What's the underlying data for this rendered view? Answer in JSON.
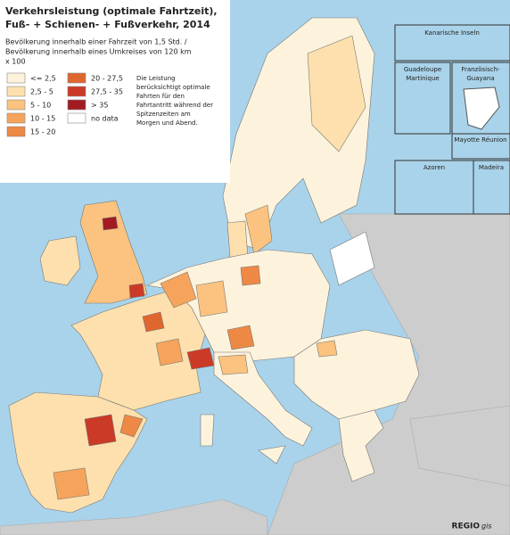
{
  "header": {
    "title_lines": [
      "Verkehrsleistung (optimale Fahrtzeit),",
      "Fuß- + Schienen- + Fußverkehr, 2014"
    ],
    "subtitle_lines": [
      "Bevölkerung innerhalb einer Fahrzeit von 1,5 Std. /",
      "Bevölkerung innerhalb eines Umkreises von 120 km",
      "x 100"
    ]
  },
  "legend": {
    "items": [
      {
        "label": "<= 2,5",
        "color": "#fdf3dc"
      },
      {
        "label": "2,5 - 5",
        "color": "#fde0ad"
      },
      {
        "label": "5 - 10",
        "color": "#fbc37f"
      },
      {
        "label": "10 - 15",
        "color": "#f6a45c"
      },
      {
        "label": "15 - 20",
        "color": "#ee8845"
      },
      {
        "label": "20 - 27,5",
        "color": "#e0662f"
      },
      {
        "label": "27,5 - 35",
        "color": "#cb3a26"
      },
      {
        "label": "> 35",
        "color": "#a31b22"
      },
      {
        "label": "no data",
        "color": "#ffffff"
      }
    ],
    "note_lines": [
      "Die Leistung",
      "berücksichtigt optimale",
      "Fahrten für den",
      "Fahrtantritt während der",
      "Spitzenzeiten am",
      "Morgen und Abend."
    ]
  },
  "insets": {
    "canaries": "Kanarische Inseln",
    "guadeloupe": [
      "Guadeloupe",
      "Martinique"
    ],
    "guyana": [
      "Französisch-",
      "Guayana"
    ],
    "mayotte": "Mayotte Réunion",
    "azores": "Azoren",
    "madeira": "Madeira"
  },
  "logo": {
    "main": "REGIO",
    "suffix": "gis"
  }
}
